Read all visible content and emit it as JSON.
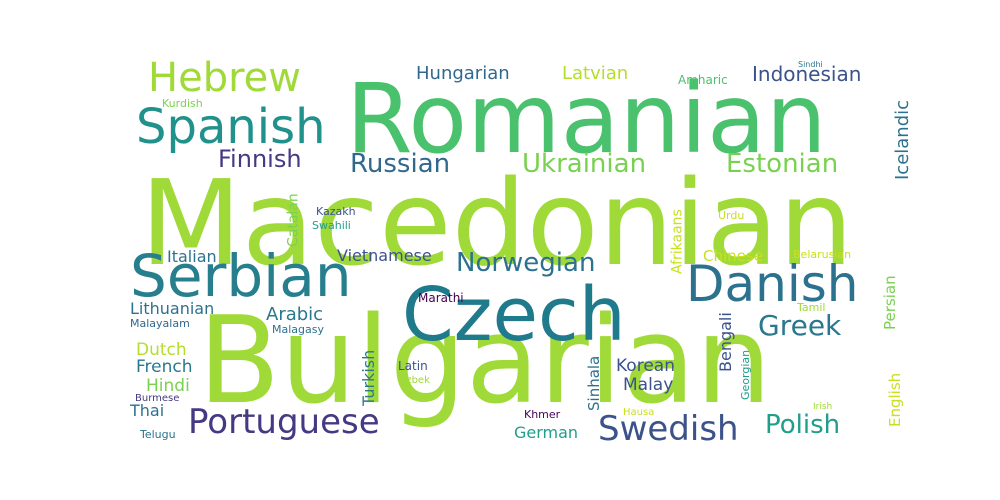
{
  "words": [
    {
      "text": "Macedonian",
      "color": "#a0da39"
    },
    {
      "text": "Bulgarian",
      "color": "#a0da39"
    },
    {
      "text": "Romanian",
      "color": "#4ac16d"
    },
    {
      "text": "Czech",
      "color": "#1f7a8c"
    },
    {
      "text": "Serbian",
      "color": "#277f8e"
    },
    {
      "text": "Danish",
      "color": "#2c728e"
    },
    {
      "text": "Spanish",
      "color": "#21918c"
    },
    {
      "text": "Hebrew",
      "color": "#a0da39"
    },
    {
      "text": "Portuguese",
      "color": "#443983"
    },
    {
      "text": "Swedish",
      "color": "#3b528b"
    },
    {
      "text": "Norwegian",
      "color": "#2c728e"
    },
    {
      "text": "Ukrainian",
      "color": "#7ad151"
    },
    {
      "text": "Russian",
      "color": "#31688e"
    },
    {
      "text": "Estonian",
      "color": "#7ad151"
    },
    {
      "text": "Finnish",
      "color": "#443983"
    },
    {
      "text": "Polish",
      "color": "#1f9e89"
    },
    {
      "text": "Greek",
      "color": "#2a788e"
    },
    {
      "text": "Hungarian",
      "color": "#31688e"
    },
    {
      "text": "Indonesian",
      "color": "#3b528b"
    },
    {
      "text": "Latvian",
      "color": "#b5de2b"
    },
    {
      "text": "Icelandic",
      "color": "#2c728e"
    },
    {
      "text": "Amharic",
      "color": "#4ac16d"
    },
    {
      "text": "Sindhi",
      "color": "#2a788e"
    },
    {
      "text": "Kurdish",
      "color": "#7ad151"
    },
    {
      "text": "Catalan",
      "color": "#7ad151"
    },
    {
      "text": "Kazakh",
      "color": "#3b528b"
    },
    {
      "text": "Swahili",
      "color": "#1f9e89"
    },
    {
      "text": "Afrikaans",
      "color": "#c8e020"
    },
    {
      "text": "Urdu",
      "color": "#c8e020"
    },
    {
      "text": "Italian",
      "color": "#2c728e"
    },
    {
      "text": "Vietnamese",
      "color": "#3b528b"
    },
    {
      "text": "Chinese",
      "color": "#c8e020"
    },
    {
      "text": "Belarusian",
      "color": "#c8e020"
    },
    {
      "text": "Lithuanian",
      "color": "#2c728e"
    },
    {
      "text": "Arabic",
      "color": "#2a788e"
    },
    {
      "text": "Marathi",
      "color": "#440154"
    },
    {
      "text": "Persian",
      "color": "#7ad151"
    },
    {
      "text": "Tamil",
      "color": "#a0da39"
    },
    {
      "text": "Malayalam",
      "color": "#31688e"
    },
    {
      "text": "Malagasy",
      "color": "#2c728e"
    },
    {
      "text": "Bengali",
      "color": "#3b528b"
    },
    {
      "text": "Dutch",
      "color": "#b5de2b"
    },
    {
      "text": "Turkish",
      "color": "#2a788e"
    },
    {
      "text": "Sinhala",
      "color": "#2c728e"
    },
    {
      "text": "Georgian",
      "color": "#1f9e89"
    },
    {
      "text": "English",
      "color": "#c8e020"
    },
    {
      "text": "French",
      "color": "#2a788e"
    },
    {
      "text": "Korean",
      "color": "#3b528b"
    },
    {
      "text": "Hindi",
      "color": "#7ad151"
    },
    {
      "text": "Latin",
      "color": "#3b528b"
    },
    {
      "text": "Uzbek",
      "color": "#a0da39"
    },
    {
      "text": "Malay",
      "color": "#3b528b"
    },
    {
      "text": "Burmese",
      "color": "#443983"
    },
    {
      "text": "Thai",
      "color": "#2c728e"
    },
    {
      "text": "Khmer",
      "color": "#440154"
    },
    {
      "text": "Hausa",
      "color": "#c8e020"
    },
    {
      "text": "German",
      "color": "#1f9e89"
    },
    {
      "text": "Telugu",
      "color": "#2c728e"
    },
    {
      "text": "Irish",
      "color": "#a0da39"
    }
  ]
}
